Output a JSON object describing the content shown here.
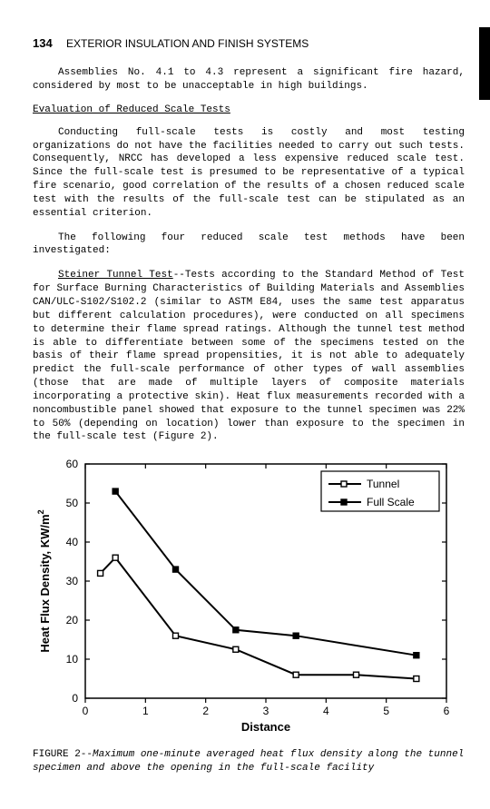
{
  "header": {
    "page_number": "134",
    "running_title": "EXTERIOR INSULATION AND FINISH SYSTEMS"
  },
  "paragraphs": {
    "p1": "Assemblies No. 4.1 to 4.3 represent a significant fire hazard, considered by most to be unacceptable in high buildings.",
    "section_heading": "Evaluation of Reduced Scale Tests",
    "p2": "Conducting full-scale tests is costly and most testing organizations do not have the facilities needed to carry out such tests. Consequently, NRCC has developed a less expensive reduced scale test. Since the full-scale test is presumed to be representative of a typical fire scenario, good correlation of the results of a chosen reduced scale test with the results of the full-scale test can be stipulated as an essential criterion.",
    "p3": "The following four reduced scale test methods have been investigated:",
    "p4_lead": "Steiner Tunnel Test",
    "p4_rest": "--Tests according to the Standard Method of Test for Surface Burning Characteristics of Building Materials and Assemblies CAN/ULC-S102/S102.2 (similar to ASTM E84, uses the same test apparatus but different calculation procedures), were conducted on all specimens to determine their flame spread ratings. Although the tunnel test method is able to differentiate between some of the specimens tested on the basis of their flame spread propensities, it is not able to adequately predict the full-scale performance of other types of wall assemblies (those that are made of multiple layers of composite materials incorporating a protective skin). Heat flux measurements recorded with a noncombustible panel showed that exposure to the tunnel specimen was 22% to 50% (depending on location) lower than exposure to the specimen in the full-scale test (Figure 2)."
  },
  "chart": {
    "type": "line",
    "title": "",
    "xlabel": "Distance",
    "ylabel": "Heat Flux Density, KW/m",
    "ylabel_sup": "2",
    "xlim": [
      0,
      6
    ],
    "ylim": [
      0,
      60
    ],
    "xtick_step": 1,
    "ytick_step": 10,
    "axis_fontsize": 13,
    "tick_fontsize": 12,
    "legend_fontsize": 12,
    "background_color": "#ffffff",
    "axis_color": "#000000",
    "line_width": 2,
    "marker_size": 6,
    "legend_pos": "top-right",
    "series": [
      {
        "name": "Tunnel",
        "color": "#000000",
        "marker": "square-open",
        "data": [
          {
            "x": 0.25,
            "y": 32
          },
          {
            "x": 0.5,
            "y": 36
          },
          {
            "x": 1.5,
            "y": 16
          },
          {
            "x": 2.5,
            "y": 12.5
          },
          {
            "x": 3.5,
            "y": 6
          },
          {
            "x": 4.5,
            "y": 6
          },
          {
            "x": 5.5,
            "y": 5
          }
        ]
      },
      {
        "name": "Full Scale",
        "color": "#000000",
        "marker": "square-filled",
        "data": [
          {
            "x": 0.5,
            "y": 53
          },
          {
            "x": 1.5,
            "y": 33
          },
          {
            "x": 2.5,
            "y": 17.5
          },
          {
            "x": 3.5,
            "y": 16
          },
          {
            "x": 5.5,
            "y": 11
          }
        ]
      }
    ]
  },
  "caption": {
    "lead": "FIGURE 2--",
    "body": "Maximum one-minute averaged heat flux density along the tunnel specimen and above the opening in the full-scale facility"
  }
}
